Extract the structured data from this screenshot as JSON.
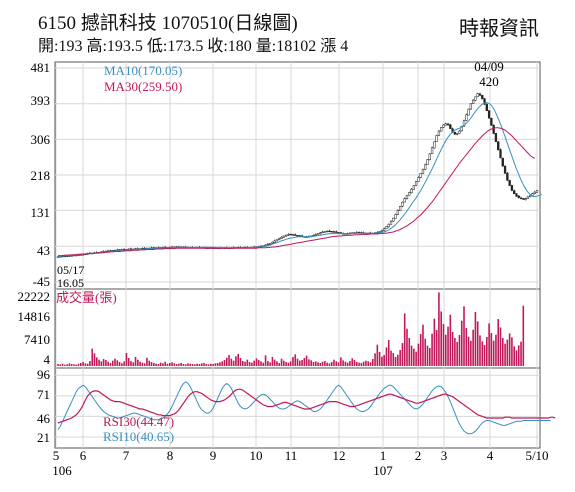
{
  "header": {
    "title": "6150  撼訊科技 1070510(日線圖)",
    "subtitle": "開:193 高:193.5 低:173.5 收:180 量:18102 漲 4",
    "source": "時報資訊"
  },
  "chart_data": [
    {
      "type": "candlestick",
      "panel": "price",
      "y_ticks": [
        "481",
        "393",
        "306",
        "218",
        "131",
        "43",
        "-45"
      ],
      "ylim": [
        -45,
        481
      ],
      "legend": [
        {
          "label": "MA10(170.05)",
          "color": "#3a8fc2"
        },
        {
          "label": "MA30(259.50)",
          "color": "#c0185a"
        }
      ],
      "annotations": {
        "high_date": "04/09",
        "high_value": "420",
        "low_date": "05/17",
        "low_value": "16.05"
      },
      "close_series": [
        17,
        18,
        18,
        19,
        19,
        20,
        20,
        21,
        21,
        22,
        22,
        23,
        24,
        25,
        26,
        26,
        27,
        27,
        28,
        29,
        30,
        31,
        32,
        32,
        33,
        33,
        34,
        34,
        35,
        35,
        35,
        36,
        36,
        36,
        37,
        37,
        37,
        38,
        38,
        38,
        38,
        39,
        39,
        39,
        39,
        40,
        40,
        40,
        40,
        40,
        41,
        41,
        41,
        41,
        41,
        41,
        40,
        40,
        40,
        40,
        40,
        40,
        40,
        40,
        39,
        39,
        39,
        39,
        39,
        39,
        39,
        39,
        39,
        39,
        39,
        39,
        39,
        39,
        40,
        40,
        40,
        40,
        40,
        40,
        40,
        40,
        41,
        41,
        42,
        43,
        44,
        46,
        48,
        50,
        53,
        56,
        59,
        62,
        65,
        68,
        70,
        72,
        72,
        71,
        70,
        69,
        68,
        67,
        66,
        66,
        67,
        68,
        70,
        72,
        74,
        76,
        78,
        79,
        80,
        80,
        79,
        78,
        77,
        76,
        75,
        74,
        74,
        74,
        75,
        76,
        76,
        77,
        77,
        76,
        76,
        75,
        75,
        75,
        75,
        76,
        77,
        79,
        82,
        86,
        91,
        97,
        104,
        112,
        121,
        131,
        141,
        151,
        160,
        168,
        175,
        183,
        192,
        202,
        212,
        222,
        232,
        243,
        256,
        270,
        285,
        300,
        315,
        326,
        335,
        341,
        344,
        341,
        332,
        323,
        318,
        320,
        326,
        338,
        352,
        366,
        380,
        393,
        402,
        410,
        418,
        414,
        405,
        392,
        376,
        358,
        340,
        320,
        300,
        280,
        260,
        240,
        222,
        205,
        192,
        180,
        172,
        166,
        162,
        160,
        158,
        160,
        164,
        168,
        172,
        176,
        180
      ],
      "ma10_series": [
        18,
        18,
        19,
        19,
        20,
        20,
        21,
        21,
        22,
        22,
        23,
        23,
        24,
        24,
        25,
        25,
        26,
        26,
        27,
        27,
        28,
        29,
        29,
        30,
        31,
        31,
        32,
        32,
        33,
        33,
        34,
        34,
        34,
        35,
        35,
        35,
        36,
        36,
        36,
        37,
        37,
        37,
        37,
        38,
        38,
        38,
        38,
        39,
        39,
        39,
        39,
        39,
        40,
        40,
        40,
        40,
        40,
        40,
        40,
        40,
        40,
        40,
        40,
        40,
        40,
        40,
        40,
        40,
        40,
        40,
        39,
        39,
        39,
        39,
        39,
        39,
        39,
        39,
        39,
        39,
        39,
        39,
        39,
        39,
        40,
        40,
        40,
        40,
        41,
        41,
        42,
        43,
        44,
        46,
        48,
        50,
        52,
        54,
        56,
        58,
        60,
        62,
        63,
        64,
        65,
        66,
        66,
        66,
        66,
        66,
        66,
        67,
        67,
        68,
        69,
        70,
        71,
        72,
        73,
        74,
        74,
        74,
        74,
        74,
        74,
        74,
        74,
        74,
        74,
        74,
        75,
        75,
        75,
        75,
        75,
        75,
        75,
        75,
        75,
        75,
        76,
        76,
        77,
        78,
        80,
        83,
        87,
        91,
        96,
        102,
        108,
        115,
        122,
        130,
        138,
        146,
        154,
        162,
        171,
        180,
        190,
        200,
        211,
        222,
        233,
        245,
        257,
        269,
        281,
        292,
        302,
        311,
        318,
        324,
        328,
        331,
        333,
        336,
        340,
        345,
        351,
        358,
        366,
        374,
        381,
        387,
        392,
        395,
        396,
        394,
        389,
        381,
        370,
        357,
        343,
        328,
        312,
        296,
        280,
        264,
        248,
        233,
        219,
        206,
        194,
        184,
        176,
        170,
        166,
        165,
        166,
        168,
        170
      ],
      "ma30_series": [
        20,
        20,
        20,
        21,
        21,
        21,
        22,
        22,
        22,
        23,
        23,
        23,
        24,
        24,
        25,
        25,
        26,
        26,
        26,
        27,
        27,
        28,
        28,
        29,
        29,
        30,
        30,
        30,
        31,
        31,
        32,
        32,
        32,
        33,
        33,
        33,
        34,
        34,
        34,
        35,
        35,
        35,
        35,
        36,
        36,
        36,
        36,
        37,
        37,
        37,
        37,
        37,
        38,
        38,
        38,
        38,
        38,
        38,
        38,
        38,
        38,
        38,
        38,
        38,
        38,
        38,
        38,
        38,
        38,
        38,
        38,
        38,
        38,
        38,
        38,
        38,
        38,
        38,
        38,
        38,
        38,
        38,
        38,
        38,
        38,
        38,
        38,
        38,
        39,
        39,
        39,
        39,
        40,
        40,
        41,
        41,
        42,
        43,
        44,
        45,
        46,
        47,
        48,
        49,
        50,
        51,
        52,
        53,
        54,
        55,
        56,
        57,
        58,
        59,
        60,
        61,
        62,
        63,
        64,
        65,
        66,
        67,
        67,
        68,
        68,
        69,
        69,
        70,
        70,
        70,
        71,
        71,
        71,
        72,
        72,
        72,
        72,
        73,
        73,
        73,
        73,
        74,
        74,
        75,
        75,
        76,
        77,
        78,
        80,
        82,
        84,
        87,
        90,
        93,
        97,
        101,
        105,
        110,
        115,
        120,
        126,
        132,
        138,
        145,
        152,
        159,
        167,
        175,
        183,
        191,
        199,
        207,
        215,
        223,
        231,
        239,
        247,
        254,
        261,
        268,
        275,
        282,
        289,
        296,
        302,
        308,
        314,
        319,
        324,
        328,
        331,
        333,
        334,
        334,
        333,
        331,
        328,
        324,
        319,
        314,
        308,
        302,
        296,
        290,
        284,
        278,
        272,
        266,
        262,
        259
      ]
    },
    {
      "type": "bar",
      "panel": "volume",
      "legend": [
        {
          "label": "成交量(張)",
          "color": "#c0185a"
        }
      ],
      "y_ticks": [
        "22222",
        "14816",
        "7410",
        "4"
      ],
      "ylim": [
        4,
        22222
      ],
      "values": [
        600,
        500,
        700,
        400,
        500,
        800,
        600,
        500,
        400,
        700,
        900,
        1200,
        800,
        700,
        1500,
        5200,
        3800,
        2600,
        1900,
        1400,
        2100,
        1800,
        1300,
        900,
        1600,
        2200,
        1700,
        1200,
        800,
        1400,
        3900,
        2400,
        1500,
        1100,
        2700,
        1900,
        1300,
        1000,
        800,
        2500,
        1600,
        1200,
        900,
        700,
        600,
        1000,
        800,
        1300,
        700,
        900,
        1100,
        800,
        600,
        700,
        900,
        600,
        500,
        800,
        700,
        600,
        500,
        700,
        600,
        800,
        900,
        600,
        500,
        700,
        600,
        800,
        900,
        1100,
        1400,
        1800,
        2500,
        3300,
        2200,
        1600,
        2900,
        3600,
        2400,
        1500,
        1300,
        1900,
        1200,
        1000,
        1600,
        2300,
        1800,
        1400,
        1000,
        3200,
        1500,
        1100,
        2700,
        1900,
        1400,
        900,
        2200,
        1600,
        1200,
        1000,
        1400,
        2700,
        3500,
        2200,
        1600,
        1800,
        2400,
        3100,
        2000,
        1700,
        1200,
        1400,
        1100,
        900,
        1300,
        1500,
        1000,
        800,
        1200,
        1900,
        1400,
        1100,
        2600,
        1700,
        1300,
        1000,
        1500,
        2300,
        1800,
        1200,
        1000,
        900,
        1300,
        1600,
        1400,
        1100,
        2100,
        3800,
        6400,
        4200,
        2800,
        3300,
        5600,
        7800,
        4600,
        3900,
        2700,
        3400,
        4800,
        6900,
        15800,
        11200,
        8400,
        6100,
        5200,
        4300,
        6700,
        9600,
        12400,
        8200,
        6100,
        5400,
        9700,
        14200,
        10800,
        22100,
        16400,
        12600,
        9400,
        11800,
        15400,
        10200,
        8400,
        7200,
        9300,
        13600,
        17900,
        11400,
        8800,
        7600,
        10900,
        16200,
        13400,
        9200,
        7400,
        6300,
        8700,
        12800,
        9900,
        7600,
        9400,
        14100,
        11600,
        8400,
        6700,
        7900,
        9800,
        8600,
        5900,
        4700,
        6200,
        7300,
        18100
      ]
    },
    {
      "type": "line",
      "panel": "rsi",
      "y_ticks": [
        "96",
        "71",
        "46",
        "21"
      ],
      "ylim": [
        10,
        100
      ],
      "legend": [
        {
          "label": "RSI30(44.47)",
          "color": "#c0185a"
        },
        {
          "label": "RSI10(40.65)",
          "color": "#3a8fc2"
        }
      ],
      "rsi30": [
        38,
        39,
        40,
        41,
        42,
        43,
        44,
        46,
        48,
        51,
        55,
        60,
        66,
        71,
        74,
        76,
        77,
        77,
        76,
        74,
        72,
        70,
        68,
        66,
        65,
        64,
        64,
        64,
        63,
        62,
        61,
        60,
        59,
        58,
        57,
        56,
        55,
        55,
        54,
        53,
        52,
        51,
        50,
        49,
        48,
        48,
        47,
        47,
        47,
        47,
        48,
        49,
        51,
        54,
        58,
        62,
        66,
        70,
        73,
        75,
        76,
        76,
        75,
        74,
        72,
        70,
        68,
        66,
        65,
        64,
        64,
        64,
        65,
        66,
        68,
        70,
        73,
        76,
        78,
        79,
        79,
        78,
        76,
        74,
        72,
        70,
        68,
        66,
        64,
        62,
        60,
        59,
        58,
        58,
        58,
        59,
        60,
        61,
        62,
        63,
        63,
        62,
        61,
        60,
        59,
        58,
        57,
        56,
        55,
        55,
        55,
        56,
        57,
        58,
        59,
        60,
        61,
        62,
        63,
        64,
        64,
        64,
        64,
        63,
        62,
        61,
        60,
        59,
        58,
        58,
        58,
        59,
        60,
        61,
        62,
        63,
        64,
        65,
        66,
        67,
        68,
        69,
        70,
        71,
        72,
        73,
        73,
        72,
        71,
        70,
        69,
        68,
        67,
        66,
        65,
        64,
        63,
        62,
        62,
        63,
        64,
        65,
        66,
        67,
        68,
        69,
        70,
        71,
        72,
        73,
        73,
        72,
        71,
        70,
        68,
        66,
        64,
        62,
        60,
        58,
        56,
        54,
        52,
        50,
        48,
        47,
        46,
        45,
        44,
        44,
        44,
        44,
        44,
        44,
        44,
        44,
        45,
        45,
        45,
        44,
        44,
        44,
        44,
        44,
        44,
        44,
        44,
        44,
        44,
        44,
        44,
        44,
        44,
        44,
        44,
        44,
        45,
        45,
        44
      ],
      "rsi10": [
        30,
        34,
        40,
        46,
        52,
        58,
        64,
        70,
        76,
        80,
        82,
        84,
        82,
        78,
        74,
        70,
        66,
        62,
        58,
        55,
        52,
        50,
        48,
        47,
        46,
        45,
        44,
        44,
        45,
        46,
        47,
        48,
        49,
        50,
        50,
        49,
        48,
        47,
        46,
        45,
        44,
        43,
        42,
        42,
        42,
        43,
        44,
        46,
        49,
        53,
        58,
        64,
        70,
        76,
        82,
        86,
        88,
        86,
        82,
        76,
        70,
        64,
        58,
        54,
        52,
        50,
        50,
        52,
        56,
        62,
        68,
        74,
        80,
        84,
        86,
        84,
        80,
        74,
        68,
        62,
        58,
        56,
        55,
        56,
        58,
        61,
        64,
        67,
        70,
        72,
        73,
        72,
        70,
        67,
        64,
        61,
        58,
        56,
        55,
        55,
        56,
        58,
        60,
        62,
        64,
        65,
        64,
        62,
        60,
        58,
        56,
        54,
        52,
        52,
        53,
        55,
        58,
        62,
        66,
        70,
        74,
        78,
        82,
        84,
        82,
        78,
        74,
        70,
        66,
        62,
        58,
        55,
        53,
        52,
        52,
        53,
        55,
        58,
        62,
        66,
        70,
        74,
        77,
        80,
        82,
        84,
        84,
        82,
        79,
        76,
        73,
        70,
        67,
        64,
        61,
        58,
        56,
        55,
        56,
        58,
        61,
        65,
        69,
        73,
        77,
        80,
        82,
        83,
        82,
        79,
        75,
        70,
        64,
        57,
        50,
        43,
        37,
        32,
        28,
        26,
        25,
        25,
        26,
        28,
        31,
        35,
        38,
        40,
        41,
        41,
        40,
        39,
        38,
        37,
        36,
        35,
        35,
        36,
        37,
        38,
        39,
        40,
        40,
        40,
        41,
        41,
        41,
        41,
        41,
        41,
        41,
        41,
        41,
        41,
        41,
        41,
        41
      ]
    }
  ],
  "x_axis": {
    "ticks": [
      "5",
      "6",
      "7",
      "8",
      "9",
      "10",
      "11",
      "12",
      "1",
      "2",
      "3",
      "4",
      "5/10"
    ],
    "years": [
      "106",
      "107"
    ]
  },
  "colors": {
    "up_candle": "#ffffff",
    "down_candle": "#222222",
    "volume_bar": "#c0185a",
    "grid": "#d7d7d7",
    "frame": "#555555"
  }
}
